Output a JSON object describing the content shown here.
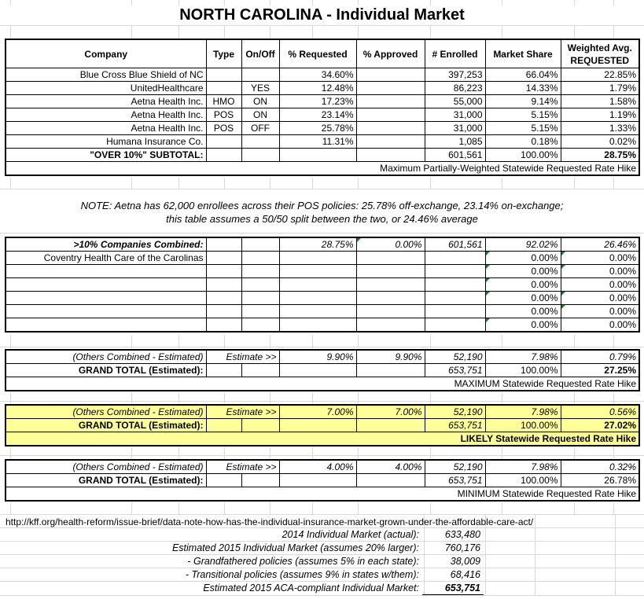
{
  "title": "NORTH CAROLINA - Individual Market",
  "colors": {
    "highlight_yellow": "#FFFF99",
    "flag_green": "#1e7b34",
    "gridline": "#d8d8d8"
  },
  "main_table": {
    "headers": [
      "Company",
      "Type",
      "On/Off",
      "% Requested",
      "% Approved",
      "# Enrolled",
      "Market Share"
    ],
    "weighted_header": {
      "line1": "Weighted Avg.",
      "line2": "REQUESTED"
    },
    "rows": [
      {
        "company": "Blue Cross Blue Shield of NC",
        "type": "",
        "onoff": "",
        "requested": "34.60%",
        "approved": "",
        "enrolled": "397,253",
        "share": "66.04%",
        "weighted": "22.85%"
      },
      {
        "company": "UnitedHealthcare",
        "type": "",
        "onoff": "YES",
        "requested": "12.48%",
        "approved": "",
        "enrolled": "86,223",
        "share": "14.33%",
        "weighted": "1.79%"
      },
      {
        "company": "Aetna Health Inc.",
        "type": "HMO",
        "onoff": "ON",
        "requested": "17.23%",
        "approved": "",
        "enrolled": "55,000",
        "share": "9.14%",
        "weighted": "1.58%"
      },
      {
        "company": "Aetna Health Inc.",
        "type": "POS",
        "onoff": "ON",
        "requested": "23.14%",
        "approved": "",
        "enrolled": "31,000",
        "share": "5.15%",
        "weighted": "1.19%"
      },
      {
        "company": "Aetna Health Inc.",
        "type": "POS",
        "onoff": "OFF",
        "requested": "25.78%",
        "approved": "",
        "enrolled": "31,000",
        "share": "5.15%",
        "weighted": "1.33%"
      },
      {
        "company": "Humana Insurance Co.",
        "type": "",
        "onoff": "",
        "requested": "11.31%",
        "approved": "",
        "enrolled": "1,085",
        "share": "0.18%",
        "weighted": "0.02%"
      }
    ],
    "subtotal": {
      "label": "\"OVER 10%\" SUBTOTAL:",
      "enrolled": "601,561",
      "share": "100.00%",
      "weighted": "28.75%"
    },
    "footer": "Maximum Partially-Weighted Statewide Requested Rate Hike"
  },
  "note": {
    "line1": "NOTE: Aetna has 62,000 enrollees across their POS policies: 25.78% off-exchange, 23.14% on-exchange;",
    "line2": "this table assumes a 50/50 split between the two, or 24.46% average"
  },
  "combined_table": {
    "row1": {
      "label": ">10% Companies Combined:",
      "requested": "28.75%",
      "approved": "0.00%",
      "enrolled": "601,561",
      "share": "92.02%",
      "weighted": "26.46%"
    },
    "rows": [
      {
        "company": "Coventry Health Care of the Carolinas",
        "share": "0.00%",
        "weighted": "0.00%"
      },
      {
        "company": "",
        "share": "0.00%",
        "weighted": "0.00%"
      },
      {
        "company": "",
        "share": "0.00%",
        "weighted": "0.00%"
      },
      {
        "company": "",
        "share": "0.00%",
        "weighted": "0.00%"
      },
      {
        "company": "",
        "share": "0.00%",
        "weighted": "0.00%"
      },
      {
        "company": "",
        "share": "0.00%",
        "weighted": "0.00%"
      }
    ]
  },
  "estimate_tables": [
    {
      "others_label": "(Others Combined - Estimated)",
      "estimate_label": "Estimate >>",
      "requested": "9.90%",
      "approved": "9.90%",
      "enrolled": "52,190",
      "share": "7.98%",
      "weighted": "0.79%",
      "total_label": "GRAND TOTAL (Estimated):",
      "total_enrolled": "653,751",
      "total_share": "100.00%",
      "total_weighted": "27.25%",
      "footer": "MAXIMUM Statewide Requested Rate Hike"
    },
    {
      "others_label": "(Others Combined - Estimated)",
      "estimate_label": "Estimate >>",
      "requested": "7.00%",
      "approved": "7.00%",
      "enrolled": "52,190",
      "share": "7.98%",
      "weighted": "0.56%",
      "total_label": "GRAND TOTAL (Estimated):",
      "total_enrolled": "653,751",
      "total_share": "100.00%",
      "total_weighted": "27.02%",
      "footer": "LIKELY Statewide Requested Rate Hike"
    },
    {
      "others_label": "(Others Combined - Estimated)",
      "estimate_label": "Estimate >>",
      "requested": "4.00%",
      "approved": "4.00%",
      "enrolled": "52,190",
      "share": "7.98%",
      "weighted": "0.32%",
      "total_label": "GRAND TOTAL (Estimated):",
      "total_enrolled": "653,751",
      "total_share": "100.00%",
      "total_weighted": "26.78%",
      "footer": "MINIMUM Statewide Requested Rate Hike"
    }
  ],
  "source": {
    "url": "http://kff.org/health-reform/issue-brief/data-note-how-has-the-individual-insurance-market-grown-under-the-affordable-care-act/",
    "rows": [
      {
        "label": "2014 Individual Market (actual):",
        "value": "633,480"
      },
      {
        "label": "Estimated 2015 Individual Market (assumes 20% larger):",
        "value": "760,176"
      },
      {
        "label": "- Grandfathered policies (assumes 5% in each state):",
        "value": "38,009"
      },
      {
        "label": "- Transitional policies (assumes 9% in states w/them):",
        "value": "68,416"
      },
      {
        "label": "Estimated 2015 ACA-compliant Individual Market:",
        "value": "653,751"
      }
    ]
  }
}
